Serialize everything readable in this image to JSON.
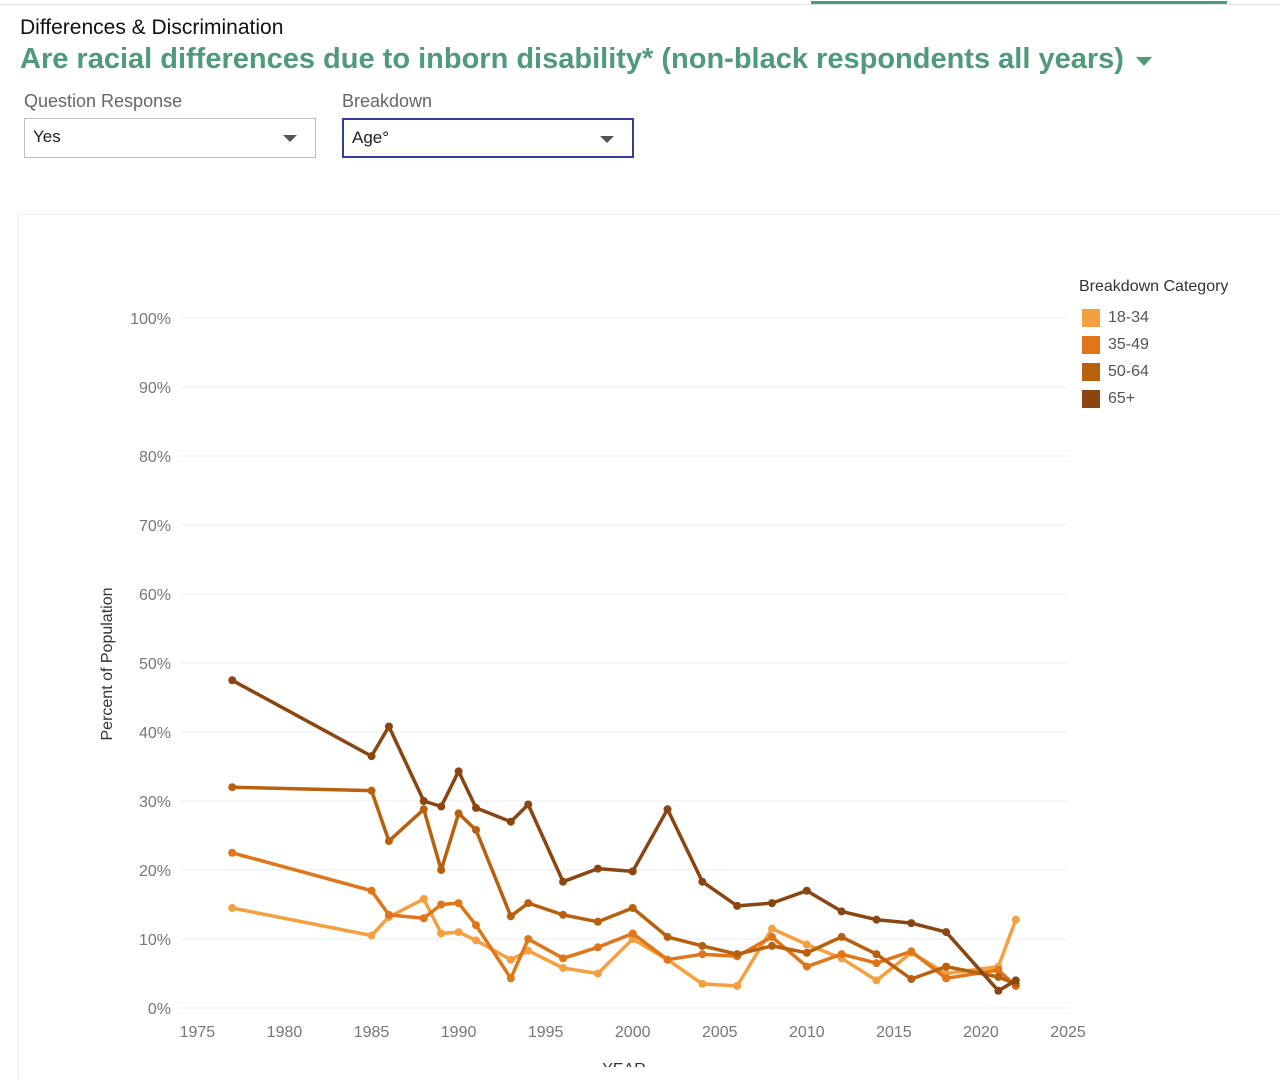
{
  "header": {
    "section": "Differences & Discrimination",
    "title": "Are racial differences due to inborn disability* (non-black respondents all years)"
  },
  "filters": {
    "question": {
      "label": "Question Response",
      "value": "Yes"
    },
    "breakdown": {
      "label": "Breakdown",
      "value": "Age°"
    }
  },
  "chart_data": {
    "type": "line",
    "ylabel": "Percent of Population",
    "xlabel": "YEAR",
    "xlim": [
      1974,
      2025
    ],
    "ylim": [
      0,
      100
    ],
    "x_ticks": [
      1975,
      1980,
      1985,
      1990,
      1995,
      2000,
      2005,
      2010,
      2015,
      2020,
      2025
    ],
    "x_tick_labels": [
      "1975",
      "1980",
      "1985",
      "1990",
      "1995",
      "2000",
      "2005",
      "2010",
      "2015",
      "2020",
      "2025"
    ],
    "y_ticks": [
      0,
      10,
      20,
      30,
      40,
      50,
      60,
      70,
      80,
      90,
      100
    ],
    "y_tick_labels": [
      "0%",
      "10%",
      "20%",
      "30%",
      "40%",
      "50%",
      "60%",
      "70%",
      "80%",
      "90%",
      "100%"
    ],
    "grid": true,
    "legend": {
      "title": "Breakdown Category",
      "position": "right"
    },
    "series": [
      {
        "name": "18-34",
        "color": "#f5a040",
        "points": [
          [
            1977,
            14.5
          ],
          [
            1985,
            10.5
          ],
          [
            1986,
            13.2
          ],
          [
            1988,
            15.8
          ],
          [
            1989,
            10.8
          ],
          [
            1990,
            11.0
          ],
          [
            1991,
            9.8
          ],
          [
            1993,
            7.0
          ],
          [
            1994,
            8.3
          ],
          [
            1996,
            5.8
          ],
          [
            1998,
            5.0
          ],
          [
            2000,
            10.0
          ],
          [
            2002,
            7.0
          ],
          [
            2004,
            3.5
          ],
          [
            2006,
            3.2
          ],
          [
            2008,
            11.5
          ],
          [
            2010,
            9.2
          ],
          [
            2012,
            7.2
          ],
          [
            2014,
            4.0
          ],
          [
            2016,
            8.0
          ],
          [
            2018,
            5.0
          ],
          [
            2021,
            6.0
          ],
          [
            2022,
            12.8
          ]
        ]
      },
      {
        "name": "35-49",
        "color": "#e07519",
        "points": [
          [
            1977,
            22.5
          ],
          [
            1985,
            17.0
          ],
          [
            1986,
            13.5
          ],
          [
            1988,
            13.0
          ],
          [
            1989,
            15.0
          ],
          [
            1990,
            15.2
          ],
          [
            1991,
            12.0
          ],
          [
            1993,
            4.3
          ],
          [
            1994,
            10.0
          ],
          [
            1996,
            7.2
          ],
          [
            1998,
            8.8
          ],
          [
            2000,
            10.8
          ],
          [
            2002,
            7.0
          ],
          [
            2004,
            7.8
          ],
          [
            2006,
            7.5
          ],
          [
            2008,
            10.3
          ],
          [
            2010,
            6.0
          ],
          [
            2012,
            7.8
          ],
          [
            2014,
            6.5
          ],
          [
            2016,
            8.2
          ],
          [
            2018,
            4.3
          ],
          [
            2021,
            5.5
          ],
          [
            2022,
            3.2
          ]
        ]
      },
      {
        "name": "50-64",
        "color": "#b9600f",
        "points": [
          [
            1977,
            32.0
          ],
          [
            1985,
            31.5
          ],
          [
            1986,
            24.2
          ],
          [
            1988,
            28.8
          ],
          [
            1989,
            20.0
          ],
          [
            1990,
            28.2
          ],
          [
            1991,
            25.8
          ],
          [
            1993,
            13.3
          ],
          [
            1994,
            15.2
          ],
          [
            1996,
            13.5
          ],
          [
            1998,
            12.5
          ],
          [
            2000,
            14.5
          ],
          [
            2002,
            10.3
          ],
          [
            2004,
            9.0
          ],
          [
            2006,
            7.8
          ],
          [
            2008,
            9.0
          ],
          [
            2010,
            8.0
          ],
          [
            2012,
            10.3
          ],
          [
            2014,
            7.8
          ],
          [
            2016,
            4.2
          ],
          [
            2018,
            6.0
          ],
          [
            2021,
            4.5
          ],
          [
            2022,
            3.5
          ]
        ]
      },
      {
        "name": "65+",
        "color": "#8a4510",
        "points": [
          [
            1977,
            47.5
          ],
          [
            1985,
            36.5
          ],
          [
            1986,
            40.8
          ],
          [
            1988,
            30.0
          ],
          [
            1989,
            29.2
          ],
          [
            1990,
            34.3
          ],
          [
            1991,
            29.0
          ],
          [
            1993,
            27.0
          ],
          [
            1994,
            29.5
          ],
          [
            1996,
            18.3
          ],
          [
            1998,
            20.2
          ],
          [
            2000,
            19.8
          ],
          [
            2002,
            28.8
          ],
          [
            2004,
            18.3
          ],
          [
            2006,
            14.8
          ],
          [
            2008,
            15.2
          ],
          [
            2010,
            17.0
          ],
          [
            2012,
            14.0
          ],
          [
            2014,
            12.8
          ],
          [
            2016,
            12.3
          ],
          [
            2018,
            11.0
          ],
          [
            2021,
            2.5
          ],
          [
            2022,
            4.0
          ]
        ]
      }
    ]
  }
}
